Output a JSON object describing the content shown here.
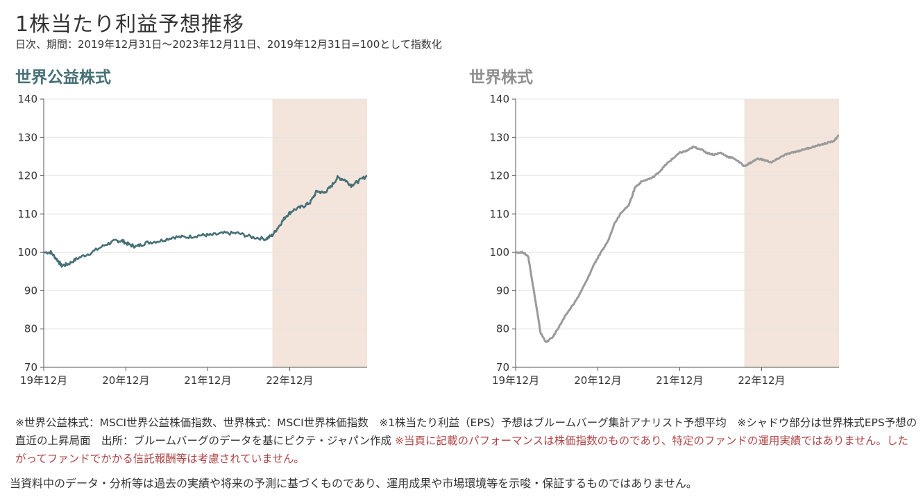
{
  "header": {
    "title": "1株当たり利益予想推移",
    "subtitle": "日次、期間：2019年12月31日～2023年12月11日、2019年12月31日=100として指数化"
  },
  "colors": {
    "left_line": "#466f76",
    "right_line": "#9a9a9a",
    "shade": "#f3e5dc",
    "grid": "#e3e3e3",
    "axis": "#555555",
    "title_left": "#466f76",
    "title_right": "#8f8f8f",
    "note_red": "#b04545"
  },
  "chart_data": [
    {
      "type": "line",
      "title": "世界公益株式",
      "x_type": "date",
      "x_range": [
        "2019-12-31",
        "2023-12-11"
      ],
      "ylim": [
        70,
        140
      ],
      "yticks": [
        70,
        80,
        90,
        100,
        110,
        120,
        130,
        140
      ],
      "xticks": [
        {
          "date": "2019-12-31",
          "label": "19年12月"
        },
        {
          "date": "2020-12-31",
          "label": "20年12月"
        },
        {
          "date": "2021-12-31",
          "label": "21年12月"
        },
        {
          "date": "2022-12-31",
          "label": "22年12月"
        }
      ],
      "grid": true,
      "shaded_region": [
        "2022-10-15",
        "2023-12-11"
      ],
      "series": [
        {
          "x": [
            "2019-12-31",
            "2020-02-01",
            "2020-03-01",
            "2020-03-20",
            "2020-04-20",
            "2020-06-01",
            "2020-08-01",
            "2020-10-01",
            "2020-11-15",
            "2020-12-15",
            "2021-01-15",
            "2021-02-15",
            "2021-04-01",
            "2021-06-01",
            "2021-08-01",
            "2021-10-01",
            "2021-12-01",
            "2022-01-15",
            "2022-03-15",
            "2022-05-15",
            "2022-07-15",
            "2022-09-15",
            "2022-10-15",
            "2022-11-15",
            "2022-12-15",
            "2023-01-15",
            "2023-03-01",
            "2023-04-01",
            "2023-05-01",
            "2023-06-01",
            "2023-07-01",
            "2023-08-01",
            "2023-09-01",
            "2023-10-01",
            "2023-11-01",
            "2023-12-11"
          ],
          "y": [
            100,
            100,
            98,
            96.5,
            97,
            98.5,
            100,
            102,
            103,
            103,
            102,
            101.5,
            102.5,
            103,
            104,
            104,
            104.5,
            104.5,
            105,
            105,
            104,
            103.5,
            104.5,
            107,
            109.5,
            111,
            112,
            113,
            116,
            115.5,
            117,
            119.5,
            119,
            117.5,
            118.5,
            120
          ]
        }
      ]
    },
    {
      "type": "line",
      "title": "世界株式",
      "x_type": "date",
      "x_range": [
        "2019-12-31",
        "2023-12-11"
      ],
      "ylim": [
        70,
        140
      ],
      "yticks": [
        70,
        80,
        90,
        100,
        110,
        120,
        130,
        140
      ],
      "xticks": [
        {
          "date": "2019-12-31",
          "label": "19年12月"
        },
        {
          "date": "2020-12-31",
          "label": "20年12月"
        },
        {
          "date": "2021-12-31",
          "label": "21年12月"
        },
        {
          "date": "2022-12-31",
          "label": "22年12月"
        }
      ],
      "grid": true,
      "shaded_region": [
        "2022-10-15",
        "2023-12-11"
      ],
      "series": [
        {
          "x": [
            "2019-12-31",
            "2020-02-01",
            "2020-02-25",
            "2020-03-10",
            "2020-04-01",
            "2020-04-20",
            "2020-05-15",
            "2020-06-15",
            "2020-07-15",
            "2020-08-15",
            "2020-10-01",
            "2020-11-15",
            "2020-12-15",
            "2021-01-15",
            "2021-02-15",
            "2021-03-15",
            "2021-04-15",
            "2021-05-15",
            "2021-06-01",
            "2021-06-15",
            "2021-07-15",
            "2021-09-01",
            "2021-10-01",
            "2021-11-01",
            "2021-12-01",
            "2022-01-01",
            "2022-02-01",
            "2022-03-01",
            "2022-04-01",
            "2022-05-01",
            "2022-06-01",
            "2022-07-01",
            "2022-08-01",
            "2022-09-01",
            "2022-10-15",
            "2022-11-15",
            "2022-12-15",
            "2023-01-15",
            "2023-02-15",
            "2023-03-15",
            "2023-04-15",
            "2023-05-15",
            "2023-06-15",
            "2023-07-15",
            "2023-08-15",
            "2023-09-15",
            "2023-10-15",
            "2023-11-15",
            "2023-12-11"
          ],
          "y": [
            100,
            100,
            99,
            94,
            86,
            79,
            76.5,
            78,
            81,
            84,
            88,
            93,
            97,
            100,
            103,
            107.5,
            110.5,
            112,
            114.5,
            117,
            118.5,
            119.5,
            121,
            123,
            124.5,
            126,
            126.5,
            127.5,
            127,
            126,
            125.5,
            126,
            125,
            124.5,
            122.5,
            123.5,
            124.5,
            124,
            123.5,
            124.5,
            125.5,
            126,
            126.5,
            127,
            127.5,
            128,
            128.5,
            129,
            130.5
          ]
        }
      ]
    }
  ],
  "notes": {
    "line1": "※世界公益株式：MSCI世界公益株価指数、世界株式：MSCI世界株価指数　※1株当たり利益（EPS）予想はブルームバーグ集計アナリスト予想平均　※シャドウ部分は世界株式EPS予想の直近の上昇局面　出所：ブルームバーグのデータを基にピクテ・ジャパン作成",
    "line_red": " ※当頁に記載のパフォーマンスは株価指数のものであり、特定のファンドの運用実績ではありません。したがってファンドでかかる信託報酬等は考慮されていません。"
  },
  "disclaimer": "当資料中のデータ・分析等は過去の実績や将来の予測に基づくものであり、運用成果や市場環境等を示唆・保証するものではありません。"
}
